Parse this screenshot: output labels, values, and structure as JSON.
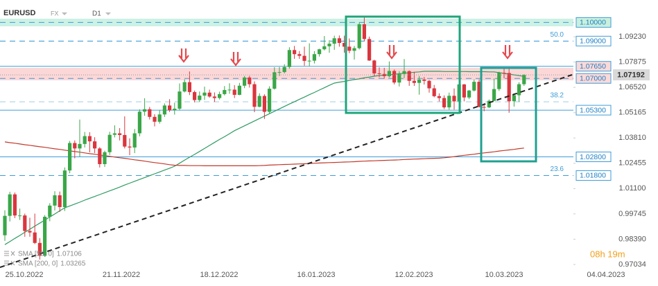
{
  "chart_data": {
    "type": "candlestick",
    "symbol": "EURUSD",
    "market": "FX",
    "timeframe": "D1",
    "countdown": "08h 19m",
    "up_color": "#3aa648",
    "down_color": "#d9363e",
    "open": [
      0.986,
      0.9964,
      1.0079,
      0.9966,
      0.9966,
      0.9883,
      0.9875,
      0.9819,
      0.975,
      0.9959,
      1.0019,
      1.0074,
      1.0011,
      1.0207,
      1.0354,
      1.0325,
      1.0349,
      1.0391,
      1.0363,
      1.0325,
      1.0241,
      1.0305,
      1.0398,
      1.0406,
      1.0397,
      1.0335,
      1.033,
      1.0406,
      1.0522,
      1.0535,
      1.0494,
      1.0468,
      1.0507,
      1.0555,
      1.053,
      1.0538,
      1.063,
      1.068,
      1.0627,
      1.0584,
      1.0608,
      1.0624,
      1.0603,
      1.0595,
      1.0616,
      1.0638,
      1.064,
      1.0612,
      1.0661,
      1.0705,
      1.0669,
      1.0548,
      1.0606,
      1.0521,
      1.0645,
      1.0733,
      1.0734,
      1.0761,
      1.0852,
      1.083,
      1.0821,
      1.0794,
      1.0795,
      1.083,
      1.0856,
      1.0872,
      1.0886,
      1.0915,
      1.089,
      1.087,
      1.0848,
      1.0862,
      1.099,
      1.0911,
      1.0796,
      1.0727,
      1.0724,
      1.0712,
      1.074,
      1.0678,
      1.0724,
      1.0739,
      1.0687,
      1.0676,
      1.0694,
      1.0687,
      1.0647,
      1.0605,
      1.0595,
      1.0545,
      1.0607,
      1.0577,
      1.0668,
      1.0598,
      1.0635,
      1.0682,
      1.0547,
      1.0545,
      1.058,
      1.0643,
      1.073,
      1.0729,
      1.0578,
      1.061,
      1.0669
    ],
    "high": [
      0.9994,
      1.0093,
      1.0089,
      1.0003,
      0.9976,
      0.9954,
      0.9976,
      0.9845,
      0.9968,
      1.0032,
      1.0096,
      1.0094,
      1.0223,
      1.0365,
      1.0368,
      1.048,
      1.0413,
      1.0412,
      1.0385,
      1.0332,
      1.0313,
      1.0414,
      1.0449,
      1.0434,
      1.0497,
      1.0379,
      1.0429,
      1.0534,
      1.0594,
      1.0547,
      1.0508,
      1.0529,
      1.0566,
      1.0589,
      1.057,
      1.0673,
      1.0695,
      1.0737,
      1.0635,
      1.063,
      1.0656,
      1.064,
      1.0625,
      1.0629,
      1.0659,
      1.0674,
      1.0664,
      1.0676,
      1.0713,
      1.0714,
      1.0684,
      1.062,
      1.0615,
      1.0658,
      1.076,
      1.0761,
      1.0776,
      1.0867,
      1.0874,
      1.0847,
      1.087,
      1.0888,
      1.0846,
      1.0859,
      1.0927,
      1.0905,
      1.0929,
      1.093,
      1.0929,
      1.0914,
      1.0874,
      1.1,
      1.1033,
      1.0924,
      1.08,
      1.0759,
      1.0757,
      1.0791,
      1.0748,
      1.0739,
      1.0804,
      1.0743,
      1.0735,
      1.0713,
      1.0708,
      1.0692,
      1.0665,
      1.062,
      1.0609,
      1.0624,
      1.0646,
      1.0691,
      1.067,
      1.0638,
      1.0694,
      1.0695,
      1.0568,
      1.0587,
      1.07,
      1.0736,
      1.076,
      1.0762,
      1.062,
      1.0679,
      1.0722
    ],
    "low": [
      0.983,
      0.9934,
      0.9952,
      0.9942,
      0.9852,
      0.9852,
      0.9813,
      0.973,
      0.9744,
      0.9935,
      0.9993,
      0.9985,
      0.999,
      1.0192,
      1.0272,
      1.0282,
      1.033,
      1.0304,
      1.03,
      1.0223,
      1.0226,
      1.029,
      1.0384,
      1.0368,
      1.0325,
      1.0289,
      1.03,
      1.039,
      1.05,
      1.048,
      1.0443,
      1.0458,
      1.0494,
      1.052,
      1.0506,
      1.053,
      1.0625,
      1.0611,
      1.0572,
      1.0574,
      1.0585,
      1.0597,
      1.0574,
      1.0587,
      1.0609,
      1.0618,
      1.0595,
      1.061,
      1.0648,
      1.0651,
      1.0519,
      1.0545,
      1.0483,
      1.051,
      1.064,
      1.0713,
      1.0727,
      1.0752,
      1.0805,
      1.0805,
      1.0768,
      1.0766,
      1.078,
      1.0817,
      1.085,
      1.0837,
      1.0853,
      1.087,
      1.0838,
      1.0835,
      1.0801,
      1.0855,
      1.09,
      1.0794,
      1.0711,
      1.0706,
      1.0699,
      1.0705,
      1.0668,
      1.0657,
      1.0702,
      1.066,
      1.066,
      1.0613,
      1.0667,
      1.0624,
      1.0599,
      1.0577,
      1.0536,
      1.0533,
      1.0533,
      1.0575,
      1.0577,
      1.0589,
      1.063,
      1.0545,
      1.0524,
      1.0541,
      1.0578,
      1.0633,
      1.0701,
      1.0516,
      1.0549,
      1.0575,
      1.066
    ],
    "close": [
      0.9964,
      1.0079,
      0.9966,
      0.9966,
      0.9883,
      0.9875,
      0.9819,
      0.975,
      0.9959,
      1.0019,
      1.0074,
      1.0011,
      1.0207,
      1.0354,
      1.0325,
      1.0349,
      1.0391,
      1.0363,
      1.0325,
      1.0241,
      1.0305,
      1.0398,
      1.0406,
      1.0397,
      1.0335,
      1.033,
      1.0406,
      1.0522,
      1.0535,
      1.0494,
      1.0468,
      1.0507,
      1.0555,
      1.053,
      1.0538,
      1.063,
      1.068,
      1.0627,
      1.0584,
      1.0608,
      1.0624,
      1.0603,
      1.0595,
      1.0616,
      1.0638,
      1.064,
      1.0612,
      1.0661,
      1.0705,
      1.0669,
      1.0548,
      1.0606,
      1.0521,
      1.0645,
      1.0733,
      1.0734,
      1.0761,
      1.0852,
      1.083,
      1.0821,
      1.0794,
      1.0795,
      1.083,
      1.0856,
      1.0872,
      1.0886,
      1.0915,
      1.089,
      1.087,
      1.0848,
      1.0862,
      1.099,
      1.0911,
      1.0796,
      1.0727,
      1.0724,
      1.0712,
      1.074,
      1.0678,
      1.0724,
      1.0739,
      1.0687,
      1.0676,
      1.0694,
      1.0687,
      1.0647,
      1.0605,
      1.0595,
      1.0545,
      1.0607,
      1.0577,
      1.0668,
      1.0598,
      1.0635,
      1.0682,
      1.0547,
      1.0545,
      1.058,
      1.0643,
      1.073,
      1.0729,
      1.0578,
      1.061,
      1.0669,
      1.0719
    ],
    "overlays": [
      {
        "name": "SMA [50, 0]",
        "last": 1.07106,
        "color": "#2e9a62",
        "values": [
          0.981,
          0.9826,
          0.9843,
          0.9859,
          0.9876,
          0.9892,
          0.9909,
          0.9925,
          0.9941,
          0.9958,
          0.9974,
          0.9991,
          1.0007,
          1.0017,
          1.0027,
          1.0037,
          1.0048,
          1.0058,
          1.0068,
          1.0078,
          1.0088,
          1.0098,
          1.0108,
          1.0118,
          1.0129,
          1.0139,
          1.0149,
          1.0159,
          1.0169,
          1.0179,
          1.0189,
          1.0199,
          1.0209,
          1.0219,
          1.023,
          1.0246,
          1.0262,
          1.0278,
          1.0293,
          1.0309,
          1.0325,
          1.0341,
          1.0357,
          1.0373,
          1.0388,
          1.0404,
          1.042,
          1.0433,
          1.0446,
          1.0459,
          1.0472,
          1.0485,
          1.0498,
          1.0511,
          1.0524,
          1.0537,
          1.055,
          1.0563,
          1.0575,
          1.0588,
          1.06,
          1.0613,
          1.0625,
          1.0638,
          1.065,
          1.0663,
          1.0675,
          1.068,
          1.0684,
          1.0689,
          1.0694,
          1.0698,
          1.0703,
          1.0707,
          1.0712,
          1.0715,
          1.0717,
          1.072,
          1.0722,
          1.0725,
          1.0728,
          1.073,
          1.0733,
          1.0735,
          1.0738,
          1.0738,
          1.0738,
          1.0738,
          1.0737,
          1.0737,
          1.0737,
          1.0737,
          1.0737,
          1.0736,
          1.0736,
          1.0736,
          1.0736,
          1.0735,
          1.0735,
          1.0731,
          1.0727,
          1.0723,
          1.0719,
          1.0715,
          1.0711
        ]
      },
      {
        "name": "SMA [200, 0]",
        "last": 1.03265,
        "color": "#c0392b",
        "values": [
          1.036,
          1.0356,
          1.0353,
          1.0349,
          1.0345,
          1.0342,
          1.0338,
          1.0334,
          1.0331,
          1.0327,
          1.0323,
          1.032,
          1.0316,
          1.0312,
          1.0308,
          1.0305,
          1.0301,
          1.0297,
          1.0294,
          1.029,
          1.0286,
          1.0283,
          1.0279,
          1.0275,
          1.0272,
          1.0268,
          1.0264,
          1.0261,
          1.0257,
          1.0253,
          1.0249,
          1.0246,
          1.0242,
          1.0238,
          1.0235,
          1.0234,
          1.0234,
          1.0233,
          1.0233,
          1.0233,
          1.0232,
          1.0232,
          1.0232,
          1.0232,
          1.0232,
          1.0232,
          1.0232,
          1.0232,
          1.0232,
          1.0232,
          1.0232,
          1.0233,
          1.0234,
          1.0236,
          1.0237,
          1.0238,
          1.0239,
          1.024,
          1.0241,
          1.0242,
          1.0243,
          1.0244,
          1.0246,
          1.0247,
          1.0248,
          1.0249,
          1.025,
          1.0251,
          1.0252,
          1.0253,
          1.0254,
          1.0256,
          1.0257,
          1.0258,
          1.0259,
          1.026,
          1.0261,
          1.0262,
          1.0263,
          1.0264,
          1.0266,
          1.0267,
          1.0268,
          1.0269,
          1.027,
          1.0271,
          1.0272,
          1.0273,
          1.0275,
          1.0278,
          1.0281,
          1.0285,
          1.0288,
          1.0291,
          1.0294,
          1.0298,
          1.0301,
          1.0304,
          1.0307,
          1.0311,
          1.0314,
          1.0317,
          1.032,
          1.0324,
          1.0327
        ]
      }
    ],
    "levels": [
      {
        "value": 1.1,
        "label": "1.10000",
        "style": "dashed",
        "box": "#c9f0de"
      },
      {
        "value": 1.09,
        "label": "1.09000",
        "style": "dashed",
        "box": "#ffffff"
      },
      {
        "value": 1.0765,
        "label": "1.07650",
        "style": "solid",
        "box": "#fbd9d9"
      },
      {
        "value": 1.07,
        "label": "1.07000",
        "style": "dashed",
        "box": "#fbd9d9"
      },
      {
        "value": 1.053,
        "label": "1.05300",
        "style": "solid",
        "box": "#ffffff"
      },
      {
        "value": 1.028,
        "label": "1.02800",
        "style": "solid",
        "box": "#ffffff"
      },
      {
        "value": 1.018,
        "label": "1.01800",
        "style": "dashed",
        "box": "#ffffff"
      }
    ],
    "fib_levels": [
      {
        "price": 1.09,
        "label": "50.0"
      },
      {
        "price": 1.0575,
        "label": "38.2"
      },
      {
        "price": 1.018,
        "label": "23.6"
      }
    ],
    "current_price": {
      "value": 1.07192,
      "label": "1.07192"
    },
    "ylim": [
      0.9681,
      1.112
    ],
    "yticks": [
      {
        "value": 1.0923,
        "label": "1.09230"
      },
      {
        "value": 1.07875,
        "label": "1.07875"
      },
      {
        "value": 1.0652,
        "label": "1.06520"
      },
      {
        "value": 1.05165,
        "label": "1.05165"
      },
      {
        "value": 1.0381,
        "label": "1.03810"
      },
      {
        "value": 1.02455,
        "label": "1.02455"
      },
      {
        "value": 1.011,
        "label": "1.01100"
      },
      {
        "value": 0.99745,
        "label": "0.99745"
      },
      {
        "value": 0.9839,
        "label": "0.98390"
      },
      {
        "value": 0.97034,
        "label": "0.97034"
      }
    ],
    "xticks": [
      "25.10.2022",
      "21.11.2022",
      "18.12.2022",
      "16.01.2023",
      "12.02.2023",
      "10.03.2023",
      "04.04.2023"
    ],
    "grid": false
  }
}
